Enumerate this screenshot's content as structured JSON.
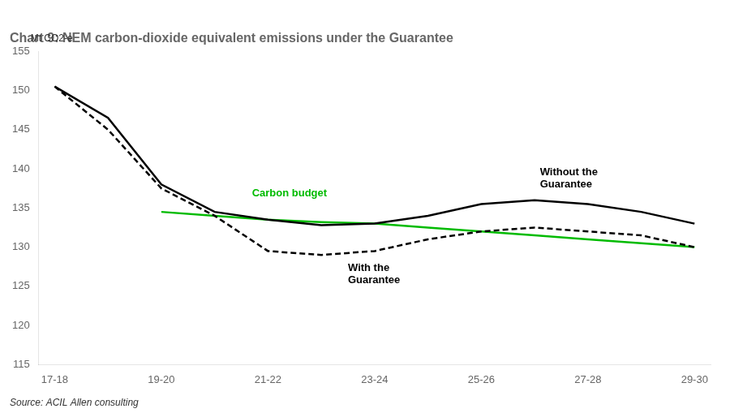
{
  "chart_data": {
    "type": "line",
    "title": "Chart 9: NEM carbon-dioxide equivalent emissions under the Guarantee",
    "ylabel": "Mt CO2-e",
    "source": "Source: ACIL Allen consulting",
    "xlim": [
      -0.15,
      6.15
    ],
    "xticks": [
      {
        "value": 0,
        "label": "17-18"
      },
      {
        "value": 1,
        "label": "19-20"
      },
      {
        "value": 2,
        "label": "21-22"
      },
      {
        "value": 3,
        "label": "23-24"
      },
      {
        "value": 4,
        "label": "25-26"
      },
      {
        "value": 5,
        "label": "27-28"
      },
      {
        "value": 6,
        "label": "29-30"
      }
    ],
    "ylim": [
      115,
      155
    ],
    "yticks": [
      115,
      120,
      125,
      130,
      135,
      140,
      145,
      150,
      155
    ],
    "grid": false,
    "series": [
      {
        "color": "#000000",
        "line_style": "solid",
        "x": [
          0,
          0.5,
          1,
          1.5,
          2,
          2.5,
          3,
          3.5,
          4,
          4.5,
          5,
          5.5,
          6
        ],
        "values": [
          150.5,
          146.5,
          138.0,
          134.5,
          133.5,
          132.8,
          133.0,
          134.0,
          135.5,
          136.0,
          135.5,
          134.5,
          133.0
        ]
      },
      {
        "color": "#000000",
        "line_style": "dashed",
        "x": [
          0,
          0.5,
          1,
          1.5,
          2,
          2.5,
          3,
          3.5,
          4,
          4.5,
          5,
          5.5,
          6
        ],
        "values": [
          150.5,
          145.0,
          137.5,
          134.0,
          129.5,
          129.0,
          129.5,
          131.0,
          132.0,
          132.5,
          132.0,
          131.5,
          130.0
        ]
      },
      {
        "color": "#00bb00",
        "line_style": "solid",
        "x": [
          1,
          1.5,
          2,
          2.5,
          3,
          3.5,
          4,
          4.5,
          5,
          5.5,
          6
        ],
        "values": [
          134.5,
          134.0,
          133.5,
          133.2,
          133.0,
          132.5,
          132.0,
          131.5,
          131.0,
          130.5,
          130.0
        ]
      }
    ],
    "annotations": [
      {
        "x": 4.55,
        "y": 138.8,
        "text": "Without the\nGuarantee",
        "color": "#000000"
      },
      {
        "x": 2.75,
        "y": 126.5,
        "text": "With the\nGuarantee",
        "color": "#000000"
      },
      {
        "x": 1.85,
        "y": 136.8,
        "text": "Carbon budget",
        "color": "#00bb00"
      }
    ]
  }
}
